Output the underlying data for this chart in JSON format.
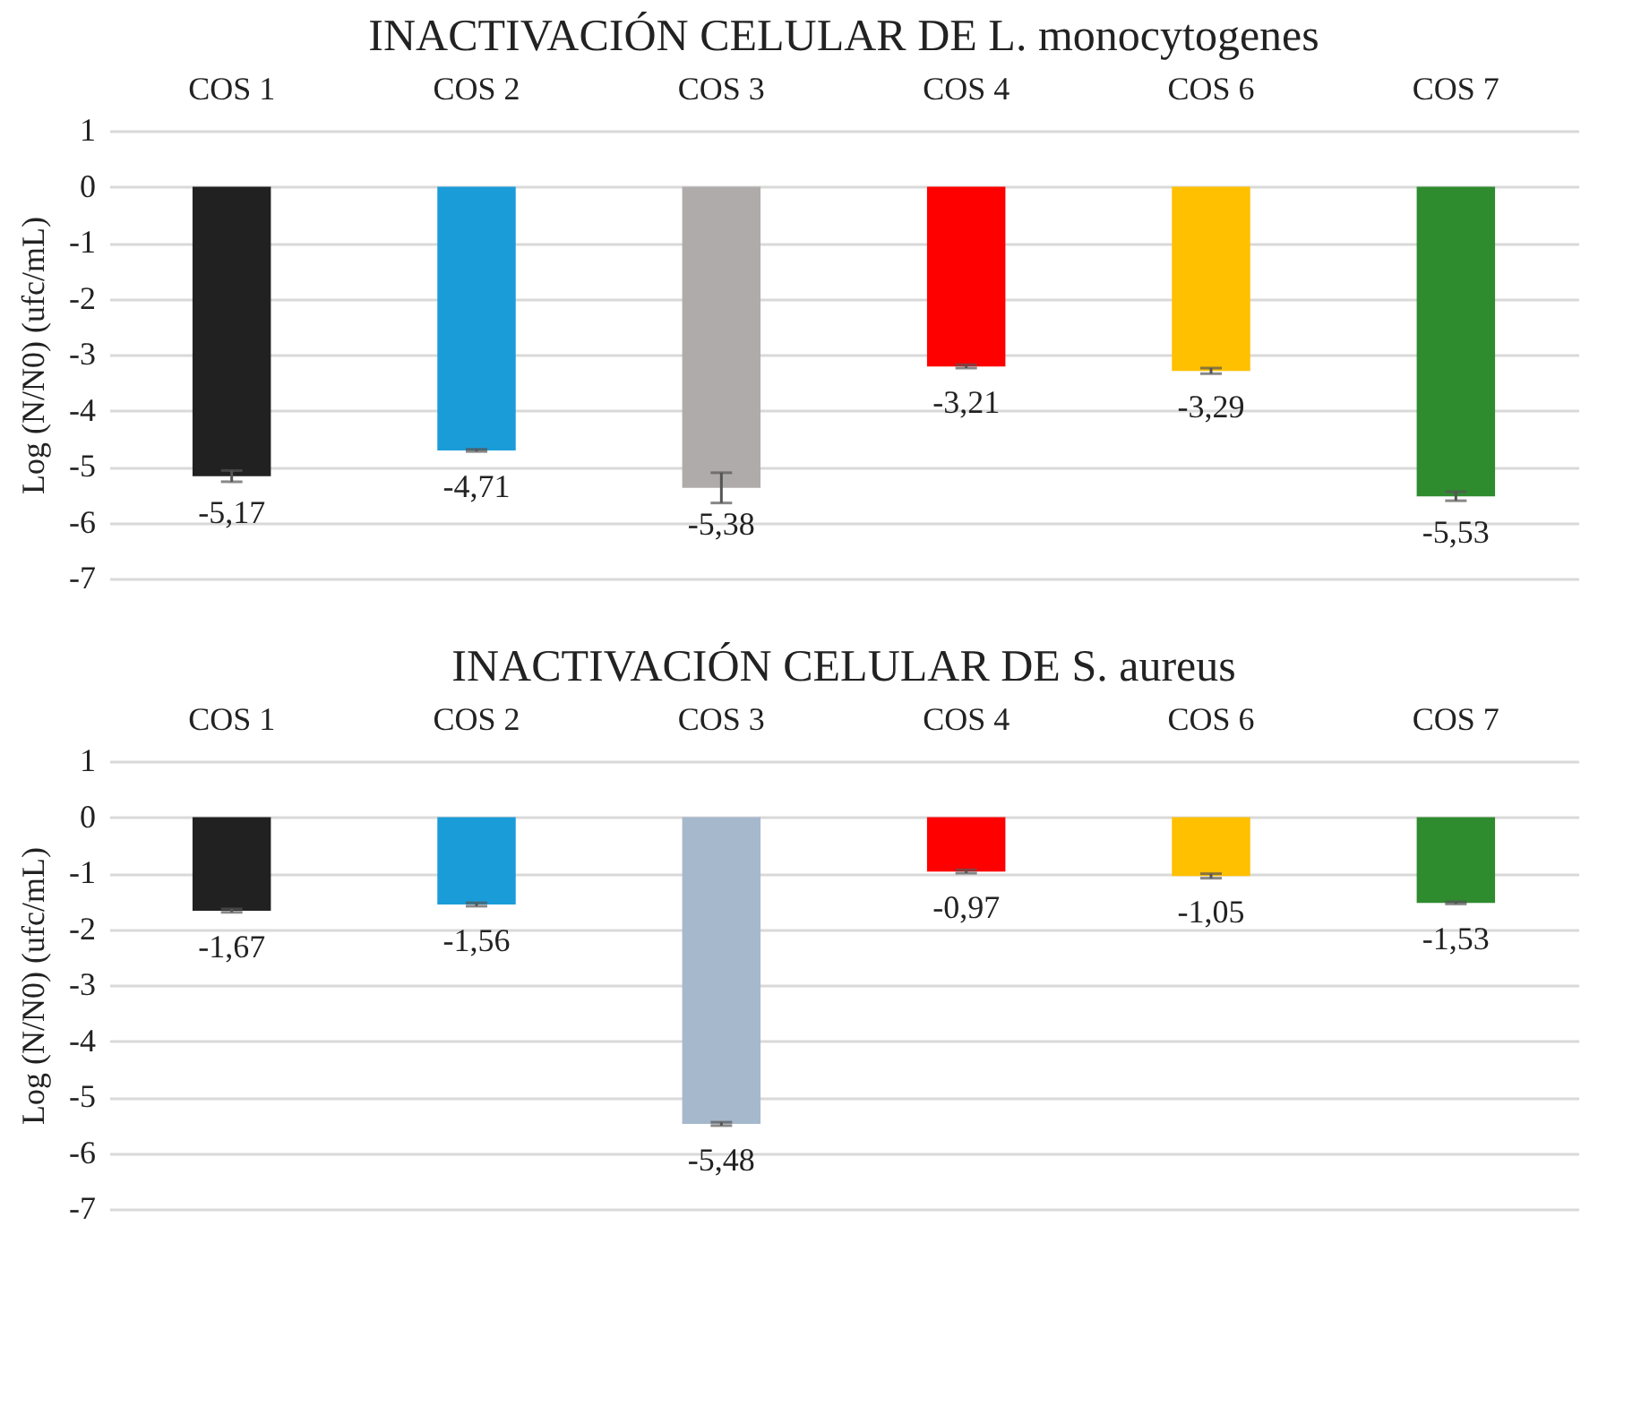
{
  "chart_data": [
    {
      "type": "bar",
      "title": "INACTIVACIÓN CELULAR  DE L. monocytogenes",
      "ylabel": "Log (N/N0)  (ufc/mL)",
      "categories": [
        "COS 1",
        "COS 2",
        "COS 3",
        "COS 4",
        "COS 6",
        "COS 7"
      ],
      "values": [
        -5.17,
        -4.71,
        -5.38,
        -3.21,
        -3.29,
        -5.53
      ],
      "colors": [
        "#212121",
        "#1a9cd8",
        "#b0abab",
        "#ff0000",
        "#ffc000",
        "#2e8b2e"
      ],
      "errors": [
        0.1,
        0.02,
        0.27,
        0.03,
        0.05,
        0.08
      ],
      "value_labels": [
        "-5,17",
        "-4,71",
        "-5,38",
        "-3,21",
        "-3,29",
        "-5,53"
      ],
      "ylim": [
        -7,
        1
      ],
      "yticks": [
        -7,
        -6,
        -5,
        -4,
        -3,
        -2,
        -1,
        0,
        1
      ],
      "grid": "y"
    },
    {
      "type": "bar",
      "title": "INACTIVACIÓN CELULAR  DE S. aureus",
      "ylabel": "Log (N/N0)  (ufc/mL)",
      "categories": [
        "COS 1",
        "COS 2",
        "COS 3",
        "COS 4",
        "COS 6",
        "COS 7"
      ],
      "values": [
        -1.67,
        -1.56,
        -5.48,
        -0.97,
        -1.05,
        -1.53
      ],
      "colors": [
        "#212121",
        "#1a9cd8",
        "#a6b8cc",
        "#ff0000",
        "#ffc000",
        "#2e8b2e"
      ],
      "errors": [
        0.03,
        0.03,
        0.03,
        0.03,
        0.04,
        0.02
      ],
      "value_labels": [
        "-1,67",
        "-1,56",
        "-5,48",
        "-0,97",
        "-1,05",
        "-1,53"
      ],
      "ylim": [
        -7,
        1
      ],
      "yticks": [
        -7,
        -6,
        -5,
        -4,
        -3,
        -2,
        -1,
        0,
        1
      ],
      "grid": "y"
    }
  ]
}
